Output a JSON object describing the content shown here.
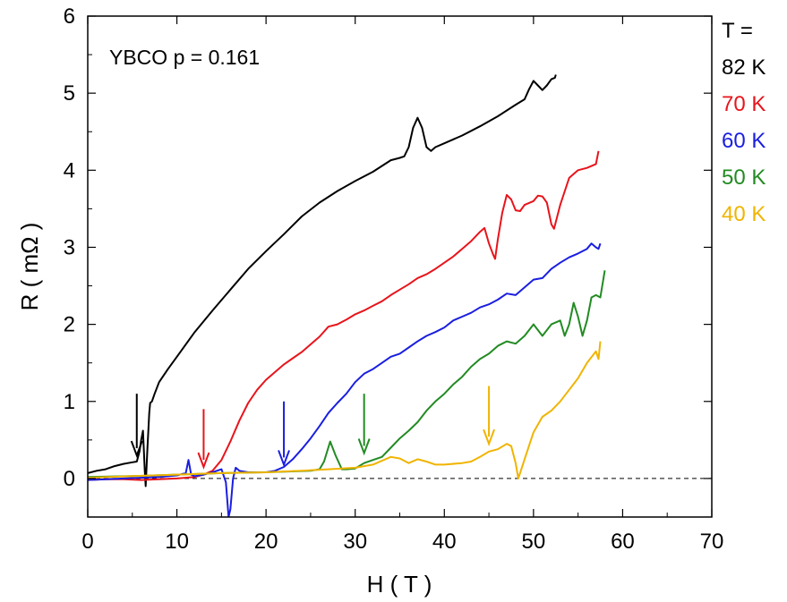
{
  "chart_data": {
    "type": "line",
    "annotation": "YBCO p = 0.161",
    "xlabel": "H ( T )",
    "ylabel": "R ( mΩ )",
    "xlim": [
      0,
      70
    ],
    "ylim": [
      -0.5,
      6
    ],
    "xticks": [
      0,
      10,
      20,
      30,
      40,
      50,
      60,
      70
    ],
    "yticks": [
      0,
      1,
      2,
      3,
      4,
      5,
      6
    ],
    "legend_title": "T =",
    "legend_position": "right",
    "zero_line": "dashed",
    "series": [
      {
        "name": "82 K",
        "color": "#000000",
        "points": [
          [
            0,
            0.07
          ],
          [
            1,
            0.1
          ],
          [
            2,
            0.12
          ],
          [
            3,
            0.16
          ],
          [
            4,
            0.19
          ],
          [
            5,
            0.21
          ],
          [
            5.5,
            0.22
          ],
          [
            5.8,
            0.35
          ],
          [
            6.0,
            0.5
          ],
          [
            6.2,
            0.62
          ],
          [
            6.4,
            0.1
          ],
          [
            6.5,
            -0.1
          ],
          [
            6.7,
            0.4
          ],
          [
            6.9,
            0.85
          ],
          [
            7.0,
            0.98
          ],
          [
            7.2,
            1.0
          ],
          [
            7.5,
            1.1
          ],
          [
            8,
            1.25
          ],
          [
            9,
            1.42
          ],
          [
            10,
            1.58
          ],
          [
            12,
            1.9
          ],
          [
            14,
            2.18
          ],
          [
            16,
            2.45
          ],
          [
            18,
            2.72
          ],
          [
            20,
            2.95
          ],
          [
            22,
            3.17
          ],
          [
            24,
            3.4
          ],
          [
            26,
            3.58
          ],
          [
            28,
            3.73
          ],
          [
            30,
            3.86
          ],
          [
            32,
            3.98
          ],
          [
            34,
            4.13
          ],
          [
            35,
            4.16
          ],
          [
            35.5,
            4.18
          ],
          [
            36,
            4.3
          ],
          [
            36.5,
            4.55
          ],
          [
            37,
            4.68
          ],
          [
            37.5,
            4.55
          ],
          [
            38,
            4.3
          ],
          [
            38.5,
            4.25
          ],
          [
            39,
            4.3
          ],
          [
            40,
            4.35
          ],
          [
            42,
            4.45
          ],
          [
            44,
            4.57
          ],
          [
            46,
            4.7
          ],
          [
            48,
            4.85
          ],
          [
            49,
            4.92
          ],
          [
            49.5,
            5.05
          ],
          [
            50,
            5.16
          ],
          [
            50.5,
            5.1
          ],
          [
            51,
            5.04
          ],
          [
            51.5,
            5.1
          ],
          [
            52,
            5.18
          ],
          [
            52.4,
            5.2
          ],
          [
            52.5,
            5.24
          ]
        ]
      },
      {
        "name": "70 K",
        "color": "#e8141b",
        "points": [
          [
            0,
            -0.02
          ],
          [
            2,
            -0.01
          ],
          [
            4,
            -0.01
          ],
          [
            6,
            -0.02
          ],
          [
            8,
            -0.01
          ],
          [
            10,
            0.0
          ],
          [
            12,
            0.02
          ],
          [
            13,
            0.05
          ],
          [
            14,
            0.1
          ],
          [
            15,
            0.24
          ],
          [
            16,
            0.48
          ],
          [
            17,
            0.75
          ],
          [
            18,
            0.98
          ],
          [
            19,
            1.15
          ],
          [
            20,
            1.28
          ],
          [
            21,
            1.38
          ],
          [
            22,
            1.48
          ],
          [
            23,
            1.56
          ],
          [
            24,
            1.64
          ],
          [
            25,
            1.74
          ],
          [
            26,
            1.84
          ],
          [
            27,
            1.97
          ],
          [
            28,
            2.0
          ],
          [
            29,
            2.06
          ],
          [
            30,
            2.13
          ],
          [
            31,
            2.18
          ],
          [
            32,
            2.24
          ],
          [
            33,
            2.3
          ],
          [
            34,
            2.38
          ],
          [
            35,
            2.45
          ],
          [
            36,
            2.52
          ],
          [
            37,
            2.6
          ],
          [
            38,
            2.65
          ],
          [
            39,
            2.72
          ],
          [
            40,
            2.8
          ],
          [
            41,
            2.88
          ],
          [
            42,
            2.98
          ],
          [
            43,
            3.08
          ],
          [
            44,
            3.2
          ],
          [
            44.5,
            3.25
          ],
          [
            45,
            3.05
          ],
          [
            45.5,
            2.9
          ],
          [
            45.7,
            2.85
          ],
          [
            46,
            3.1
          ],
          [
            46.5,
            3.45
          ],
          [
            47,
            3.68
          ],
          [
            47.5,
            3.62
          ],
          [
            48,
            3.48
          ],
          [
            48.5,
            3.47
          ],
          [
            49,
            3.55
          ],
          [
            50,
            3.6
          ],
          [
            50.5,
            3.67
          ],
          [
            51,
            3.66
          ],
          [
            51.5,
            3.58
          ],
          [
            52,
            3.3
          ],
          [
            52.3,
            3.24
          ],
          [
            53,
            3.55
          ],
          [
            54,
            3.9
          ],
          [
            55,
            4.0
          ],
          [
            56,
            4.03
          ],
          [
            57,
            4.08
          ],
          [
            57.3,
            4.25
          ]
        ]
      },
      {
        "name": "60 K",
        "color": "#1a1ee0",
        "points": [
          [
            0,
            -0.02
          ],
          [
            4,
            0.0
          ],
          [
            8,
            0.02
          ],
          [
            10,
            0.04
          ],
          [
            11,
            0.07
          ],
          [
            11.3,
            0.24
          ],
          [
            11.6,
            0.05
          ],
          [
            12,
            0.03
          ],
          [
            13,
            0.05
          ],
          [
            14,
            0.08
          ],
          [
            15,
            0.12
          ],
          [
            15.5,
            -0.05
          ],
          [
            15.8,
            -0.5
          ],
          [
            16,
            -0.4
          ],
          [
            16.3,
            0.0
          ],
          [
            16.6,
            0.14
          ],
          [
            17,
            0.1
          ],
          [
            18,
            0.08
          ],
          [
            20,
            0.08
          ],
          [
            21,
            0.1
          ],
          [
            22,
            0.15
          ],
          [
            23,
            0.25
          ],
          [
            24,
            0.38
          ],
          [
            25,
            0.52
          ],
          [
            26,
            0.68
          ],
          [
            27,
            0.85
          ],
          [
            28,
            0.98
          ],
          [
            29,
            1.1
          ],
          [
            30,
            1.25
          ],
          [
            31,
            1.36
          ],
          [
            32,
            1.42
          ],
          [
            33,
            1.5
          ],
          [
            34,
            1.58
          ],
          [
            35,
            1.62
          ],
          [
            36,
            1.7
          ],
          [
            37,
            1.78
          ],
          [
            38,
            1.85
          ],
          [
            39,
            1.9
          ],
          [
            40,
            1.96
          ],
          [
            41,
            2.05
          ],
          [
            42,
            2.1
          ],
          [
            43,
            2.15
          ],
          [
            44,
            2.22
          ],
          [
            45,
            2.26
          ],
          [
            46,
            2.32
          ],
          [
            47,
            2.4
          ],
          [
            48,
            2.38
          ],
          [
            49,
            2.48
          ],
          [
            50,
            2.58
          ],
          [
            51,
            2.6
          ],
          [
            52,
            2.72
          ],
          [
            53,
            2.8
          ],
          [
            54,
            2.87
          ],
          [
            55,
            2.92
          ],
          [
            56,
            2.98
          ],
          [
            56.5,
            3.05
          ],
          [
            57,
            3.0
          ],
          [
            57.3,
            2.98
          ],
          [
            57.5,
            3.05
          ]
        ]
      },
      {
        "name": "50 K",
        "color": "#228b22",
        "points": [
          [
            0,
            0.02
          ],
          [
            5,
            0.03
          ],
          [
            10,
            0.05
          ],
          [
            15,
            0.07
          ],
          [
            20,
            0.08
          ],
          [
            25,
            0.1
          ],
          [
            26,
            0.12
          ],
          [
            26.5,
            0.22
          ],
          [
            27.2,
            0.48
          ],
          [
            27.8,
            0.3
          ],
          [
            28.5,
            0.12
          ],
          [
            29,
            0.12
          ],
          [
            30,
            0.13
          ],
          [
            31,
            0.2
          ],
          [
            32,
            0.24
          ],
          [
            33,
            0.28
          ],
          [
            34,
            0.4
          ],
          [
            35,
            0.52
          ],
          [
            36,
            0.62
          ],
          [
            37,
            0.73
          ],
          [
            38,
            0.88
          ],
          [
            39,
            1.0
          ],
          [
            40,
            1.1
          ],
          [
            41,
            1.22
          ],
          [
            42,
            1.32
          ],
          [
            43,
            1.45
          ],
          [
            44,
            1.55
          ],
          [
            45,
            1.62
          ],
          [
            46,
            1.72
          ],
          [
            47,
            1.78
          ],
          [
            48,
            1.75
          ],
          [
            49,
            1.85
          ],
          [
            50,
            2.0
          ],
          [
            51,
            1.85
          ],
          [
            52,
            2.0
          ],
          [
            53,
            2.05
          ],
          [
            53.5,
            1.85
          ],
          [
            54,
            2.0
          ],
          [
            54.5,
            2.28
          ],
          [
            55,
            2.1
          ],
          [
            55.5,
            1.85
          ],
          [
            56,
            2.05
          ],
          [
            56.5,
            2.35
          ],
          [
            57,
            2.38
          ],
          [
            57.5,
            2.35
          ],
          [
            58,
            2.7
          ]
        ]
      },
      {
        "name": "40 K",
        "color": "#f0b400",
        "points": [
          [
            0,
            0.01
          ],
          [
            5,
            0.03
          ],
          [
            10,
            0.05
          ],
          [
            15,
            0.07
          ],
          [
            20,
            0.08
          ],
          [
            24,
            0.1
          ],
          [
            27,
            0.12
          ],
          [
            30,
            0.14
          ],
          [
            32,
            0.18
          ],
          [
            34,
            0.28
          ],
          [
            35,
            0.26
          ],
          [
            36,
            0.2
          ],
          [
            37,
            0.25
          ],
          [
            38,
            0.22
          ],
          [
            39,
            0.18
          ],
          [
            40,
            0.18
          ],
          [
            42,
            0.2
          ],
          [
            43,
            0.22
          ],
          [
            44,
            0.28
          ],
          [
            45,
            0.35
          ],
          [
            46,
            0.38
          ],
          [
            47,
            0.45
          ],
          [
            47.5,
            0.42
          ],
          [
            48,
            0.2
          ],
          [
            48.3,
            0.0
          ],
          [
            49,
            0.25
          ],
          [
            50,
            0.6
          ],
          [
            51,
            0.8
          ],
          [
            52,
            0.88
          ],
          [
            53,
            1.0
          ],
          [
            54,
            1.15
          ],
          [
            55,
            1.3
          ],
          [
            56,
            1.5
          ],
          [
            57,
            1.65
          ],
          [
            57.3,
            1.55
          ],
          [
            57.5,
            1.78
          ]
        ]
      }
    ],
    "arrows": [
      {
        "x": 5.5,
        "y_top": 1.1,
        "y_bottom": 0.3,
        "color": "#000000"
      },
      {
        "x": 13,
        "y_top": 0.9,
        "y_bottom": 0.15,
        "color": "#e8141b"
      },
      {
        "x": 22,
        "y_top": 1.0,
        "y_bottom": 0.18,
        "color": "#1a1ee0"
      },
      {
        "x": 31,
        "y_top": 1.1,
        "y_bottom": 0.33,
        "color": "#228b22"
      },
      {
        "x": 45,
        "y_top": 1.2,
        "y_bottom": 0.45,
        "color": "#f0b400"
      }
    ]
  }
}
